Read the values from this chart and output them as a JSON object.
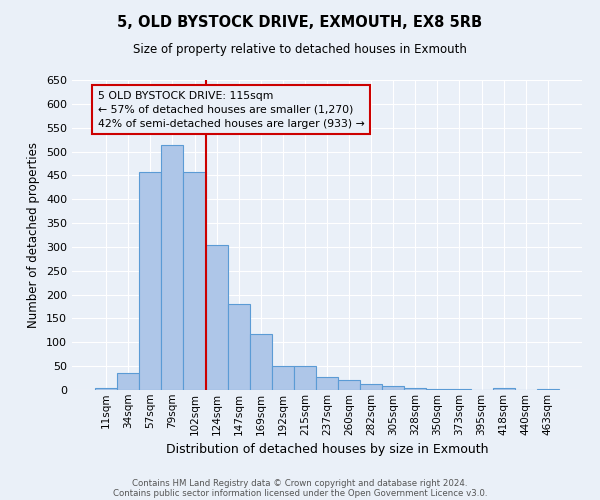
{
  "title": "5, OLD BYSTOCK DRIVE, EXMOUTH, EX8 5RB",
  "subtitle": "Size of property relative to detached houses in Exmouth",
  "xlabel": "Distribution of detached houses by size in Exmouth",
  "ylabel": "Number of detached properties",
  "bin_labels": [
    "11sqm",
    "34sqm",
    "57sqm",
    "79sqm",
    "102sqm",
    "124sqm",
    "147sqm",
    "169sqm",
    "192sqm",
    "215sqm",
    "237sqm",
    "260sqm",
    "282sqm",
    "305sqm",
    "328sqm",
    "350sqm",
    "373sqm",
    "395sqm",
    "418sqm",
    "440sqm",
    "463sqm"
  ],
  "bar_values": [
    5,
    35,
    458,
    513,
    458,
    305,
    180,
    118,
    50,
    50,
    28,
    20,
    13,
    8,
    5,
    3,
    2,
    1,
    5,
    1,
    3
  ],
  "bar_color": "#aec6e8",
  "bar_edgecolor": "#5b9bd5",
  "bar_linewidth": 0.8,
  "vline_x": 4.5,
  "vline_color": "#cc0000",
  "vline_linewidth": 1.5,
  "annotation_title": "5 OLD BYSTOCK DRIVE: 115sqm",
  "annotation_line1": "← 57% of detached houses are smaller (1,270)",
  "annotation_line2": "42% of semi-detached houses are larger (933) →",
  "annotation_box_edgecolor": "#cc0000",
  "ylim": [
    0,
    650
  ],
  "yticks": [
    0,
    50,
    100,
    150,
    200,
    250,
    300,
    350,
    400,
    450,
    500,
    550,
    600,
    650
  ],
  "bg_color": "#eaf0f8",
  "grid_color": "#ffffff",
  "footer_line1": "Contains HM Land Registry data © Crown copyright and database right 2024.",
  "footer_line2": "Contains public sector information licensed under the Open Government Licence v3.0."
}
